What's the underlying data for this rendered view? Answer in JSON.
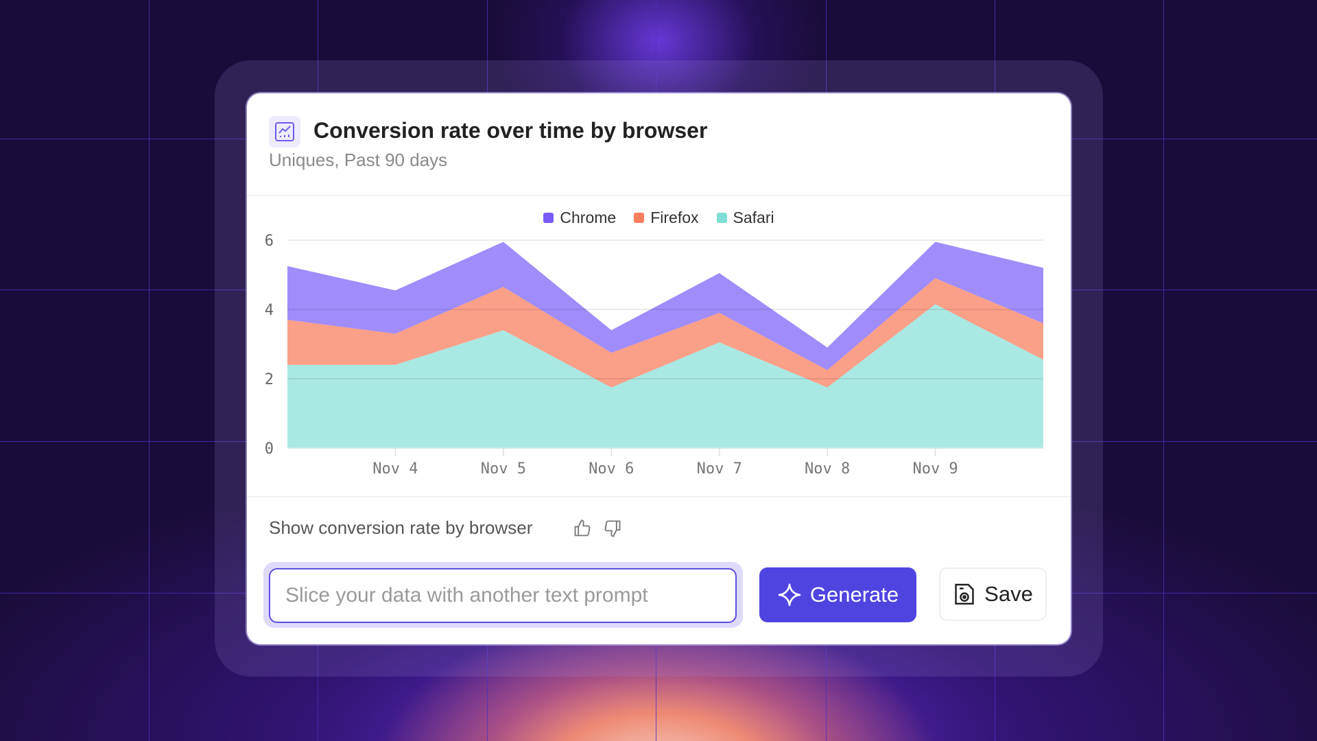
{
  "card": {
    "icon": "line-chart-icon",
    "title": "Conversion rate over time by browser",
    "subtitle": "Uniques, Past 90 days"
  },
  "chart_data": {
    "type": "area",
    "stacked": true,
    "categories": [
      "",
      "Nov 4",
      "Nov 5",
      "Nov 6",
      "Nov 7",
      "Nov 8",
      "Nov 9",
      ""
    ],
    "series": [
      {
        "name": "Safari",
        "color": "#7fded5",
        "fill": "#a9e8e3",
        "values": [
          2.4,
          2.4,
          3.4,
          1.75,
          3.05,
          1.75,
          4.15,
          2.55
        ]
      },
      {
        "name": "Firefox",
        "color": "#f97d5e",
        "fill": "#fa9f88",
        "values": [
          1.3,
          0.9,
          1.25,
          1.0,
          0.85,
          0.5,
          0.75,
          1.05
        ]
      },
      {
        "name": "Chrome",
        "color": "#7a5af8",
        "fill": "#a08cfb",
        "values": [
          1.55,
          1.25,
          1.3,
          0.65,
          1.15,
          0.65,
          1.05,
          1.6
        ]
      }
    ],
    "legend_order": [
      "Chrome",
      "Firefox",
      "Safari"
    ],
    "y_ticks": [
      "0",
      "2",
      "4",
      "6"
    ],
    "ylim": [
      0,
      6
    ],
    "grid": true,
    "legend_position": "top-center",
    "xlabel": "",
    "ylabel": ""
  },
  "footer": {
    "prompt_text": "Show conversion rate by browser",
    "thumbs_up_icon": "thumbs-up-icon",
    "thumbs_down_icon": "thumbs-down-icon",
    "input_placeholder": "Slice your data with another text prompt",
    "input_value": "",
    "generate_label": "Generate",
    "save_label": "Save",
    "accent": "#4f44e0"
  }
}
